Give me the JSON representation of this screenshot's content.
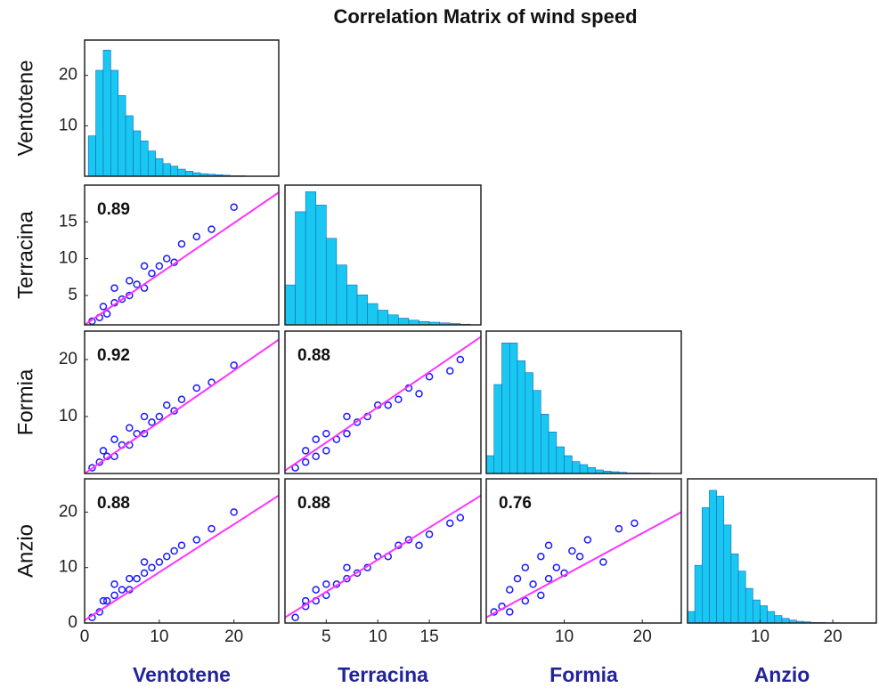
{
  "chart_data": {
    "type": "scatter_matrix",
    "title": "Correlation Matrix of wind speed",
    "point_color": "#1a1aff",
    "hist_color": "#19c8f0",
    "fit_color": "#ff33ff",
    "variables": [
      {
        "name": "Ventotene",
        "xlim": [
          0,
          26
        ],
        "xticks": [
          0,
          10,
          20
        ]
      },
      {
        "name": "Terracina",
        "xlim": [
          1,
          20
        ],
        "xticks": [
          5,
          10,
          15
        ],
        "ylim": [
          1,
          20
        ],
        "yticks": [
          5,
          10,
          15
        ]
      },
      {
        "name": "Formia",
        "xlim": [
          0,
          25
        ],
        "xticks": [
          10,
          20
        ],
        "ylim": [
          0,
          25
        ],
        "yticks": [
          10,
          20
        ]
      },
      {
        "name": "Anzio",
        "xlim": [
          0,
          26
        ],
        "xticks": [
          10,
          20
        ],
        "ylim": [
          0,
          26
        ],
        "yticks": [
          0,
          10,
          20
        ]
      }
    ],
    "histograms": [
      {
        "bins": [
          0.5,
          1.5,
          2.5,
          3.5,
          4.5,
          5.5,
          6.5,
          7.5,
          8.5,
          9.5,
          10.5,
          11.5,
          12.5,
          13.5,
          14.5,
          15.5,
          16.5,
          17.5,
          18.5,
          19.5,
          20.5,
          21.5
        ],
        "counts": [
          8,
          21,
          25,
          21,
          16,
          12,
          9,
          7,
          5,
          3.5,
          2.5,
          2,
          1.4,
          1,
          0.7,
          0.5,
          0.4,
          0.3,
          0.2,
          0.1,
          0.1
        ],
        "ylim": [
          0,
          27
        ],
        "yticks": [
          10,
          20
        ]
      },
      {
        "bins": [
          1,
          2,
          3,
          4,
          5,
          6,
          7,
          8,
          9,
          10,
          11,
          12,
          13,
          14,
          15,
          16,
          17,
          18,
          19
        ],
        "counts": [
          6,
          17,
          20,
          18,
          13,
          9,
          6,
          4.5,
          3.2,
          2.2,
          1.5,
          1,
          0.7,
          0.5,
          0.4,
          0.3,
          0.2,
          0.1
        ],
        "ylim": [
          0,
          21
        ]
      },
      {
        "bins": [
          0,
          1,
          2,
          3,
          4,
          5,
          6,
          7,
          8,
          9,
          10,
          11,
          12,
          13,
          14,
          15,
          16,
          17,
          18,
          19,
          20,
          21
        ],
        "counts": [
          3,
          15,
          22,
          22,
          19,
          17,
          14,
          10,
          7,
          4.5,
          3,
          2,
          1.5,
          1,
          0.6,
          0.4,
          0.3,
          0.2,
          0.1,
          0.1,
          0.1
        ],
        "ylim": [
          0,
          24
        ]
      },
      {
        "bins": [
          0,
          1,
          2,
          3,
          4,
          5,
          6,
          7,
          8,
          9,
          10,
          11,
          12,
          13,
          14,
          15,
          16,
          17,
          18,
          19,
          20,
          21
        ],
        "counts": [
          2,
          10,
          20,
          23,
          22,
          17,
          12,
          9,
          6,
          4,
          3,
          2,
          1.3,
          0.8,
          0.5,
          0.3,
          0.2,
          0.1,
          0.1,
          0.05,
          0.05
        ],
        "ylim": [
          0,
          25
        ]
      }
    ],
    "scatter": [
      {
        "r": 0.89,
        "x": [
          1,
          2,
          2.5,
          3,
          4,
          4,
          5,
          6,
          6,
          7,
          8,
          8,
          9,
          10,
          11,
          12,
          13,
          15,
          17,
          20
        ],
        "y": [
          1.5,
          2,
          3.5,
          2.5,
          4,
          6,
          4.5,
          5,
          7,
          6.5,
          6,
          9,
          8,
          9,
          10,
          9.5,
          12,
          13,
          14,
          17
        ],
        "fit": {
          "x": [
            0,
            26
          ],
          "y": [
            1,
            19
          ]
        }
      },
      {
        "r": 0.92,
        "x": [
          1,
          2,
          2.5,
          3,
          4,
          4,
          5,
          6,
          6,
          7,
          8,
          8,
          9,
          10,
          11,
          12,
          13,
          15,
          17,
          20
        ],
        "y": [
          1,
          2,
          4,
          3,
          3,
          6,
          5,
          5,
          8,
          7,
          7,
          10,
          9,
          10,
          12,
          11,
          13,
          15,
          16,
          19
        ],
        "fit": {
          "x": [
            0,
            26
          ],
          "y": [
            0,
            23.5
          ]
        }
      },
      {
        "r": 0.88,
        "x": [
          2,
          3,
          3,
          4,
          4,
          5,
          5,
          6,
          7,
          7,
          8,
          9,
          10,
          11,
          12,
          13,
          14,
          15,
          17,
          18
        ],
        "y": [
          1,
          2,
          4,
          3,
          6,
          4,
          7,
          6,
          7,
          10,
          9,
          10,
          12,
          12,
          13,
          15,
          14,
          17,
          18,
          20
        ],
        "fit": {
          "x": [
            1,
            20
          ],
          "y": [
            0.5,
            24
          ]
        }
      },
      {
        "r": 0.88,
        "x": [
          1,
          2,
          2.5,
          3,
          4,
          4,
          5,
          6,
          6,
          7,
          8,
          8,
          9,
          10,
          11,
          12,
          13,
          15,
          17,
          20
        ],
        "y": [
          1,
          2,
          4,
          4,
          5,
          7,
          6,
          6,
          8,
          8,
          9,
          11,
          10,
          11,
          12,
          13,
          14,
          15,
          17,
          20
        ],
        "fit": {
          "x": [
            0,
            26
          ],
          "y": [
            0.5,
            23
          ]
        }
      },
      {
        "r": 0.88,
        "x": [
          2,
          3,
          3,
          4,
          4,
          5,
          5,
          6,
          7,
          7,
          8,
          9,
          10,
          11,
          12,
          13,
          14,
          15,
          17,
          18
        ],
        "y": [
          1,
          3,
          4,
          4,
          6,
          5,
          7,
          7,
          8,
          10,
          9,
          10,
          12,
          12,
          14,
          15,
          14,
          16,
          18,
          19
        ],
        "fit": {
          "x": [
            1,
            20
          ],
          "y": [
            1,
            23
          ]
        }
      },
      {
        "r": 0.76,
        "x": [
          1,
          2,
          3,
          3,
          4,
          5,
          5,
          6,
          7,
          7,
          8,
          8,
          9,
          10,
          11,
          12,
          13,
          15,
          17,
          19
        ],
        "y": [
          2,
          3,
          6,
          2,
          8,
          4,
          10,
          7,
          5,
          12,
          8,
          14,
          10,
          9,
          13,
          12,
          15,
          11,
          17,
          18
        ],
        "fit": {
          "x": [
            0,
            25
          ],
          "y": [
            1,
            20
          ]
        }
      }
    ]
  }
}
